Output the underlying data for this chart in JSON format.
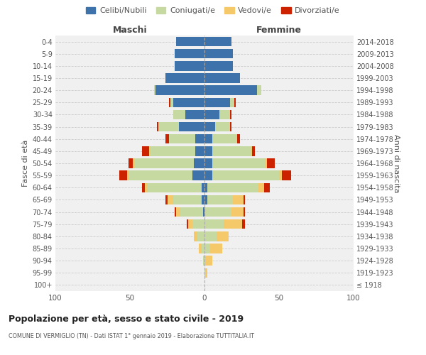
{
  "age_groups": [
    "100+",
    "95-99",
    "90-94",
    "85-89",
    "80-84",
    "75-79",
    "70-74",
    "65-69",
    "60-64",
    "55-59",
    "50-54",
    "45-49",
    "40-44",
    "35-39",
    "30-34",
    "25-29",
    "20-24",
    "15-19",
    "10-14",
    "5-9",
    "0-4"
  ],
  "birth_years": [
    "≤ 1918",
    "1919-1923",
    "1924-1928",
    "1929-1933",
    "1934-1938",
    "1939-1943",
    "1944-1948",
    "1949-1953",
    "1954-1958",
    "1959-1963",
    "1964-1968",
    "1969-1973",
    "1974-1978",
    "1979-1983",
    "1984-1988",
    "1989-1993",
    "1994-1998",
    "1999-2003",
    "2004-2008",
    "2009-2013",
    "2014-2018"
  ],
  "males": {
    "celibi": [
      0,
      0,
      0,
      0,
      0,
      0,
      1,
      2,
      2,
      8,
      7,
      6,
      6,
      17,
      13,
      21,
      33,
      26,
      20,
      20,
      19
    ],
    "coniugati": [
      0,
      0,
      1,
      2,
      5,
      8,
      15,
      19,
      36,
      43,
      40,
      30,
      18,
      14,
      8,
      2,
      1,
      0,
      0,
      0,
      0
    ],
    "vedovi": [
      0,
      0,
      0,
      2,
      2,
      3,
      3,
      4,
      2,
      1,
      1,
      1,
      0,
      0,
      0,
      0,
      0,
      0,
      0,
      0,
      0
    ],
    "divorziati": [
      0,
      0,
      0,
      0,
      0,
      1,
      1,
      1,
      2,
      5,
      3,
      5,
      2,
      1,
      0,
      1,
      0,
      0,
      0,
      0,
      0
    ]
  },
  "females": {
    "nubili": [
      0,
      0,
      0,
      0,
      0,
      0,
      0,
      2,
      2,
      5,
      5,
      5,
      5,
      7,
      10,
      17,
      35,
      24,
      19,
      19,
      18
    ],
    "coniugate": [
      0,
      1,
      1,
      4,
      8,
      13,
      18,
      17,
      34,
      45,
      36,
      26,
      17,
      10,
      7,
      3,
      3,
      0,
      0,
      0,
      0
    ],
    "vedove": [
      0,
      1,
      4,
      8,
      8,
      12,
      8,
      7,
      4,
      2,
      1,
      1,
      0,
      0,
      0,
      0,
      0,
      0,
      0,
      0,
      0
    ],
    "divorziate": [
      0,
      0,
      0,
      0,
      0,
      2,
      1,
      1,
      4,
      6,
      5,
      2,
      2,
      1,
      1,
      1,
      0,
      0,
      0,
      0,
      0
    ]
  },
  "colors": {
    "celibi": "#3d72aa",
    "coniugati": "#c5d9a0",
    "vedovi": "#f5c96a",
    "divorziati": "#cc2200"
  },
  "xlim": 100,
  "title": "Popolazione per età, sesso e stato civile - 2019",
  "subtitle": "COMUNE DI VERMIGLIO (TN) - Dati ISTAT 1° gennaio 2019 - Elaborazione TUTTITALIA.IT",
  "ylabel_left": "Fasce di età",
  "ylabel_right": "Anni di nascita",
  "xlabel_left": "Maschi",
  "xlabel_right": "Femmine",
  "legend_labels": [
    "Celibi/Nubili",
    "Coniugati/e",
    "Vedovi/e",
    "Divorziati/e"
  ],
  "bg_color": "#f0f0f0",
  "grid_color": "#cccccc"
}
